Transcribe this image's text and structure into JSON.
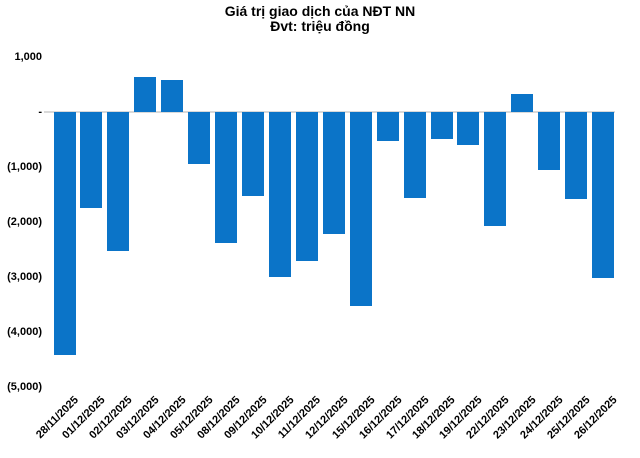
{
  "header": {
    "title": "Giá trị giao dịch của NĐT NN",
    "subtitle": "Đvt: triệu đồng"
  },
  "colors": {
    "bar": "#0b74c8",
    "axis_line": "#d9d9d9",
    "text": "#000000",
    "background": "#ffffff"
  },
  "chart_data": {
    "type": "bar",
    "title": "Giá trị giao dịch của NĐT NN",
    "subtitle": "Đvt: triệu đồng",
    "unit": "triệu đồng",
    "categories": [
      "28/11/2025",
      "01/12/2025",
      "02/12/2025",
      "03/12/2025",
      "04/12/2025",
      "05/12/2025",
      "08/12/2025",
      "09/12/2025",
      "10/12/2025",
      "11/12/2025",
      "12/12/2025",
      "15/12/2025",
      "16/12/2025",
      "17/12/2025",
      "18/12/2025",
      "19/12/2025",
      "22/12/2025",
      "23/12/2025",
      "24/12/2025",
      "25/12/2025",
      "26/12/2025"
    ],
    "values": [
      -4420,
      -1740,
      -2520,
      630,
      590,
      -940,
      -2380,
      -1530,
      -3000,
      -2700,
      -2220,
      -3530,
      -530,
      -1560,
      -490,
      -600,
      -2070,
      330,
      -1060,
      -1590,
      -3010
    ],
    "xlabel": "",
    "ylabel": "",
    "ylim": [
      -5000,
      1000
    ],
    "y_tick_values": [
      1000,
      0,
      -1000,
      -2000,
      -3000,
      -4000,
      -5000
    ],
    "y_tick_labels": [
      "1,000",
      "-",
      "(1,000)",
      "(2,000)",
      "(3,000)",
      "(4,000)",
      "(5,000)"
    ],
    "grid": false,
    "legend": false,
    "bar_color": "#0b74c8",
    "negative_number_format": "parentheses",
    "x_label_rotation_deg": -45
  }
}
